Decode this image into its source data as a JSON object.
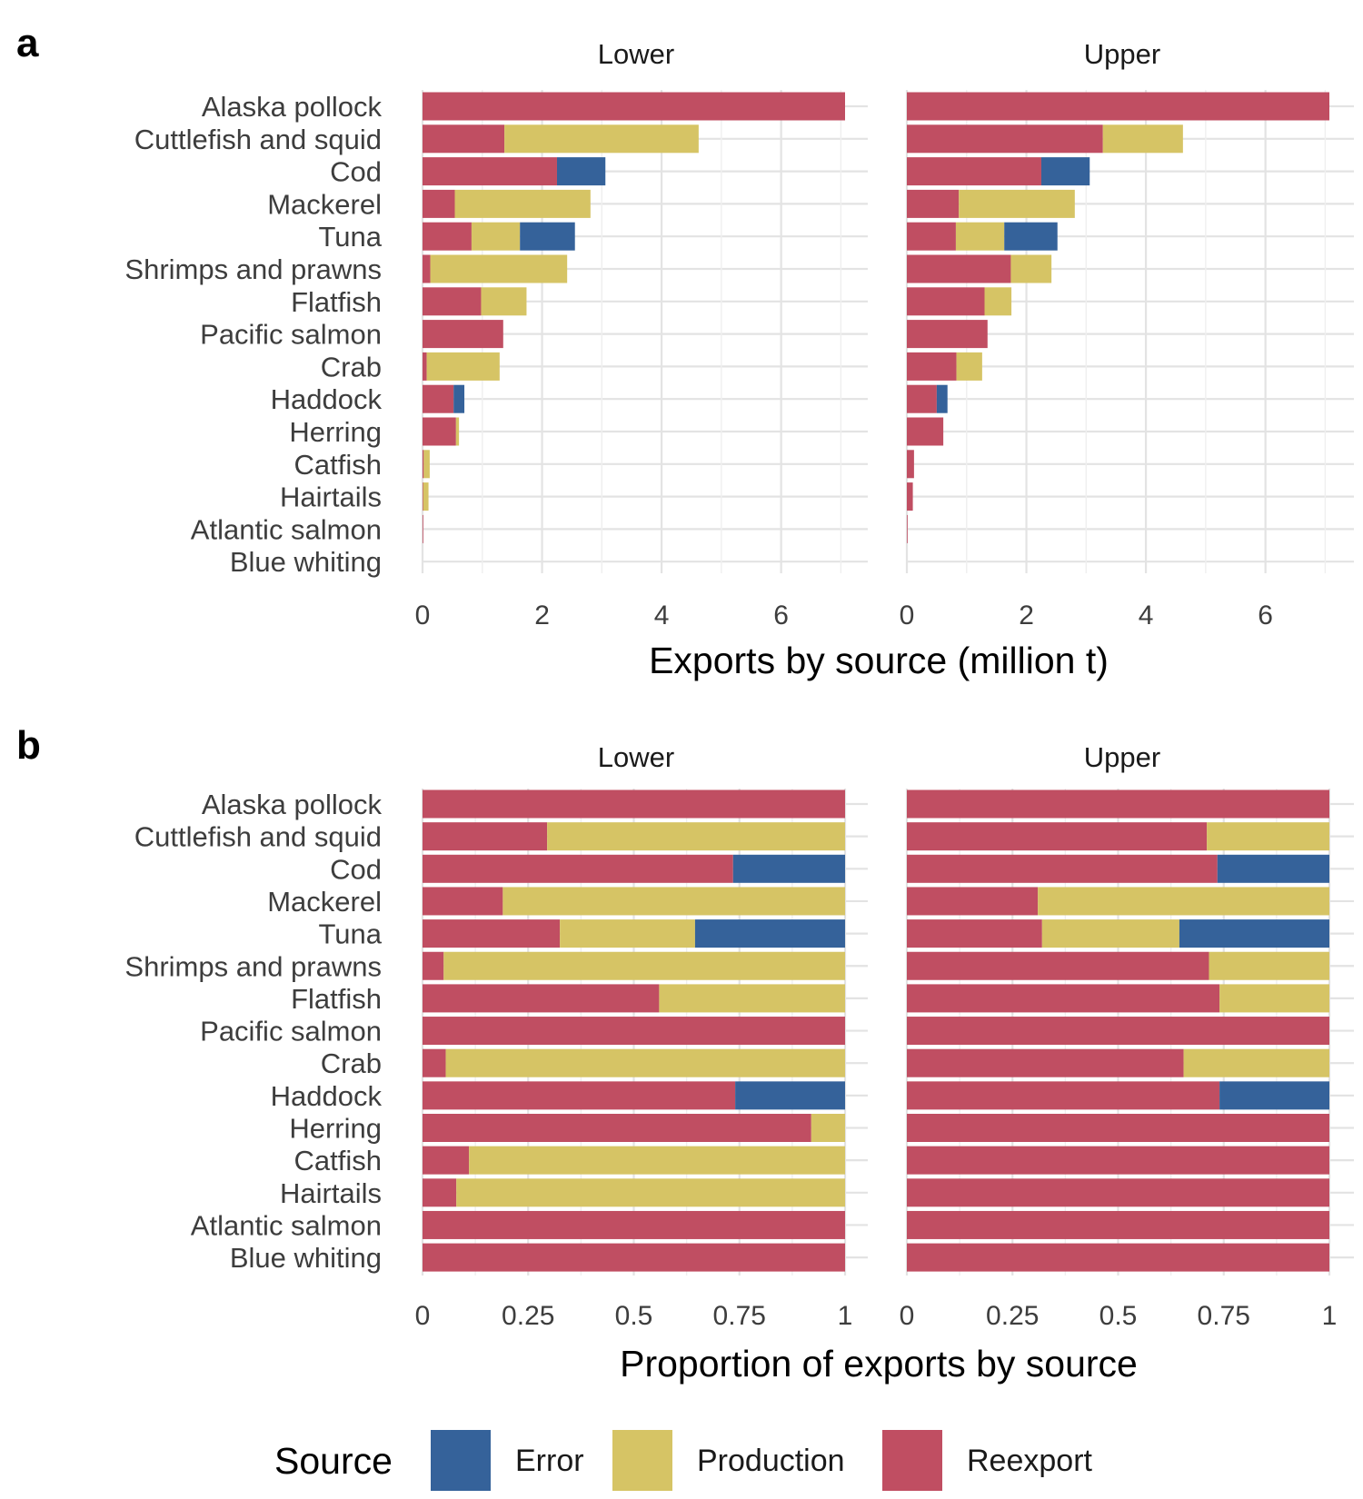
{
  "colors": {
    "Error": "#35629a",
    "Production": "#d6c465",
    "Reexport": "#c04e62"
  },
  "legend": {
    "title": "Source",
    "items": [
      "Error",
      "Production",
      "Reexport"
    ]
  },
  "chart_data": [
    {
      "panel": "a",
      "type": "bar",
      "orientation": "horizontal",
      "stacked": true,
      "xlabel": "Exports by source (million t)",
      "xlim": [
        0,
        7.2
      ],
      "xticks": [
        0,
        2,
        4,
        6
      ],
      "xtick_labels": [
        "0",
        "2",
        "4",
        "6"
      ],
      "grid": true,
      "categories": [
        "Alaska pollock",
        "Cuttlefish and squid",
        "Cod",
        "Mackerel",
        "Tuna",
        "Shrimps and prawns",
        "Flatfish",
        "Pacific salmon",
        "Crab",
        "Haddock",
        "Herring",
        "Catfish",
        "Hairtails",
        "Atlantic salmon",
        "Blue whiting"
      ],
      "facets": [
        {
          "name": "Lower",
          "series": [
            {
              "name": "Reexport",
              "values": [
                7.07,
                1.37,
                2.25,
                0.54,
                0.82,
                0.13,
                0.98,
                1.35,
                0.07,
                0.52,
                0.56,
                0.02,
                0.01,
                0.01,
                0.0
              ]
            },
            {
              "name": "Production",
              "values": [
                0.0,
                3.25,
                0.0,
                2.27,
                0.81,
                2.29,
                0.76,
                0.0,
                1.22,
                0.0,
                0.05,
                0.1,
                0.09,
                0.0,
                0.0
              ]
            },
            {
              "name": "Error",
              "values": [
                0.0,
                0.0,
                0.81,
                0.0,
                0.92,
                0.0,
                0.0,
                0.0,
                0.0,
                0.18,
                0.0,
                0.0,
                0.0,
                0.0,
                0.0
              ]
            }
          ]
        },
        {
          "name": "Upper",
          "series": [
            {
              "name": "Reexport",
              "values": [
                7.07,
                3.28,
                2.25,
                0.87,
                0.82,
                1.74,
                1.3,
                1.35,
                0.83,
                0.5,
                0.61,
                0.12,
                0.1,
                0.01,
                0.0
              ]
            },
            {
              "name": "Production",
              "values": [
                0.0,
                1.34,
                0.0,
                1.94,
                0.81,
                0.68,
                0.45,
                0.0,
                0.43,
                0.0,
                0.0,
                0.0,
                0.0,
                0.0,
                0.0
              ]
            },
            {
              "name": "Error",
              "values": [
                0.0,
                0.0,
                0.81,
                0.0,
                0.89,
                0.0,
                0.0,
                0.0,
                0.0,
                0.18,
                0.0,
                0.0,
                0.0,
                0.0,
                0.0
              ]
            }
          ]
        }
      ]
    },
    {
      "panel": "b",
      "type": "bar",
      "orientation": "horizontal",
      "stacked": true,
      "xlabel": "Proportion of exports by source",
      "xlim": [
        0,
        1.07
      ],
      "xticks": [
        0,
        0.25,
        0.5,
        0.75,
        1
      ],
      "xtick_labels": [
        "0",
        "0.25",
        "0.5",
        "0.75",
        "1"
      ],
      "grid": true,
      "categories": [
        "Alaska pollock",
        "Cuttlefish and squid",
        "Cod",
        "Mackerel",
        "Tuna",
        "Shrimps and prawns",
        "Flatfish",
        "Pacific salmon",
        "Crab",
        "Haddock",
        "Herring",
        "Catfish",
        "Hairtails",
        "Atlantic salmon",
        "Blue whiting"
      ],
      "facets": [
        {
          "name": "Lower",
          "series": [
            {
              "name": "Reexport",
              "values": [
                1.0,
                0.295,
                0.735,
                0.19,
                0.325,
                0.05,
                0.56,
                1.0,
                0.055,
                0.74,
                0.92,
                0.11,
                0.08,
                1.0,
                1.0
              ]
            },
            {
              "name": "Production",
              "values": [
                0.0,
                0.705,
                0.0,
                0.81,
                0.32,
                0.95,
                0.44,
                0.0,
                0.945,
                0.0,
                0.08,
                0.89,
                0.92,
                0.0,
                0.0
              ]
            },
            {
              "name": "Error",
              "values": [
                0.0,
                0.0,
                0.265,
                0.0,
                0.355,
                0.0,
                0.0,
                0.0,
                0.0,
                0.26,
                0.0,
                0.0,
                0.0,
                0.0,
                0.0
              ]
            }
          ]
        },
        {
          "name": "Upper",
          "series": [
            {
              "name": "Reexport",
              "values": [
                1.0,
                0.71,
                0.735,
                0.31,
                0.32,
                0.715,
                0.74,
                1.0,
                0.655,
                0.74,
                1.0,
                1.0,
                1.0,
                1.0,
                1.0
              ]
            },
            {
              "name": "Production",
              "values": [
                0.0,
                0.29,
                0.0,
                0.69,
                0.325,
                0.285,
                0.26,
                0.0,
                0.345,
                0.0,
                0.0,
                0.0,
                0.0,
                0.0,
                0.0
              ]
            },
            {
              "name": "Error",
              "values": [
                0.0,
                0.0,
                0.265,
                0.0,
                0.355,
                0.0,
                0.0,
                0.0,
                0.0,
                0.26,
                0.0,
                0.0,
                0.0,
                0.0,
                0.0
              ]
            }
          ]
        }
      ]
    }
  ]
}
